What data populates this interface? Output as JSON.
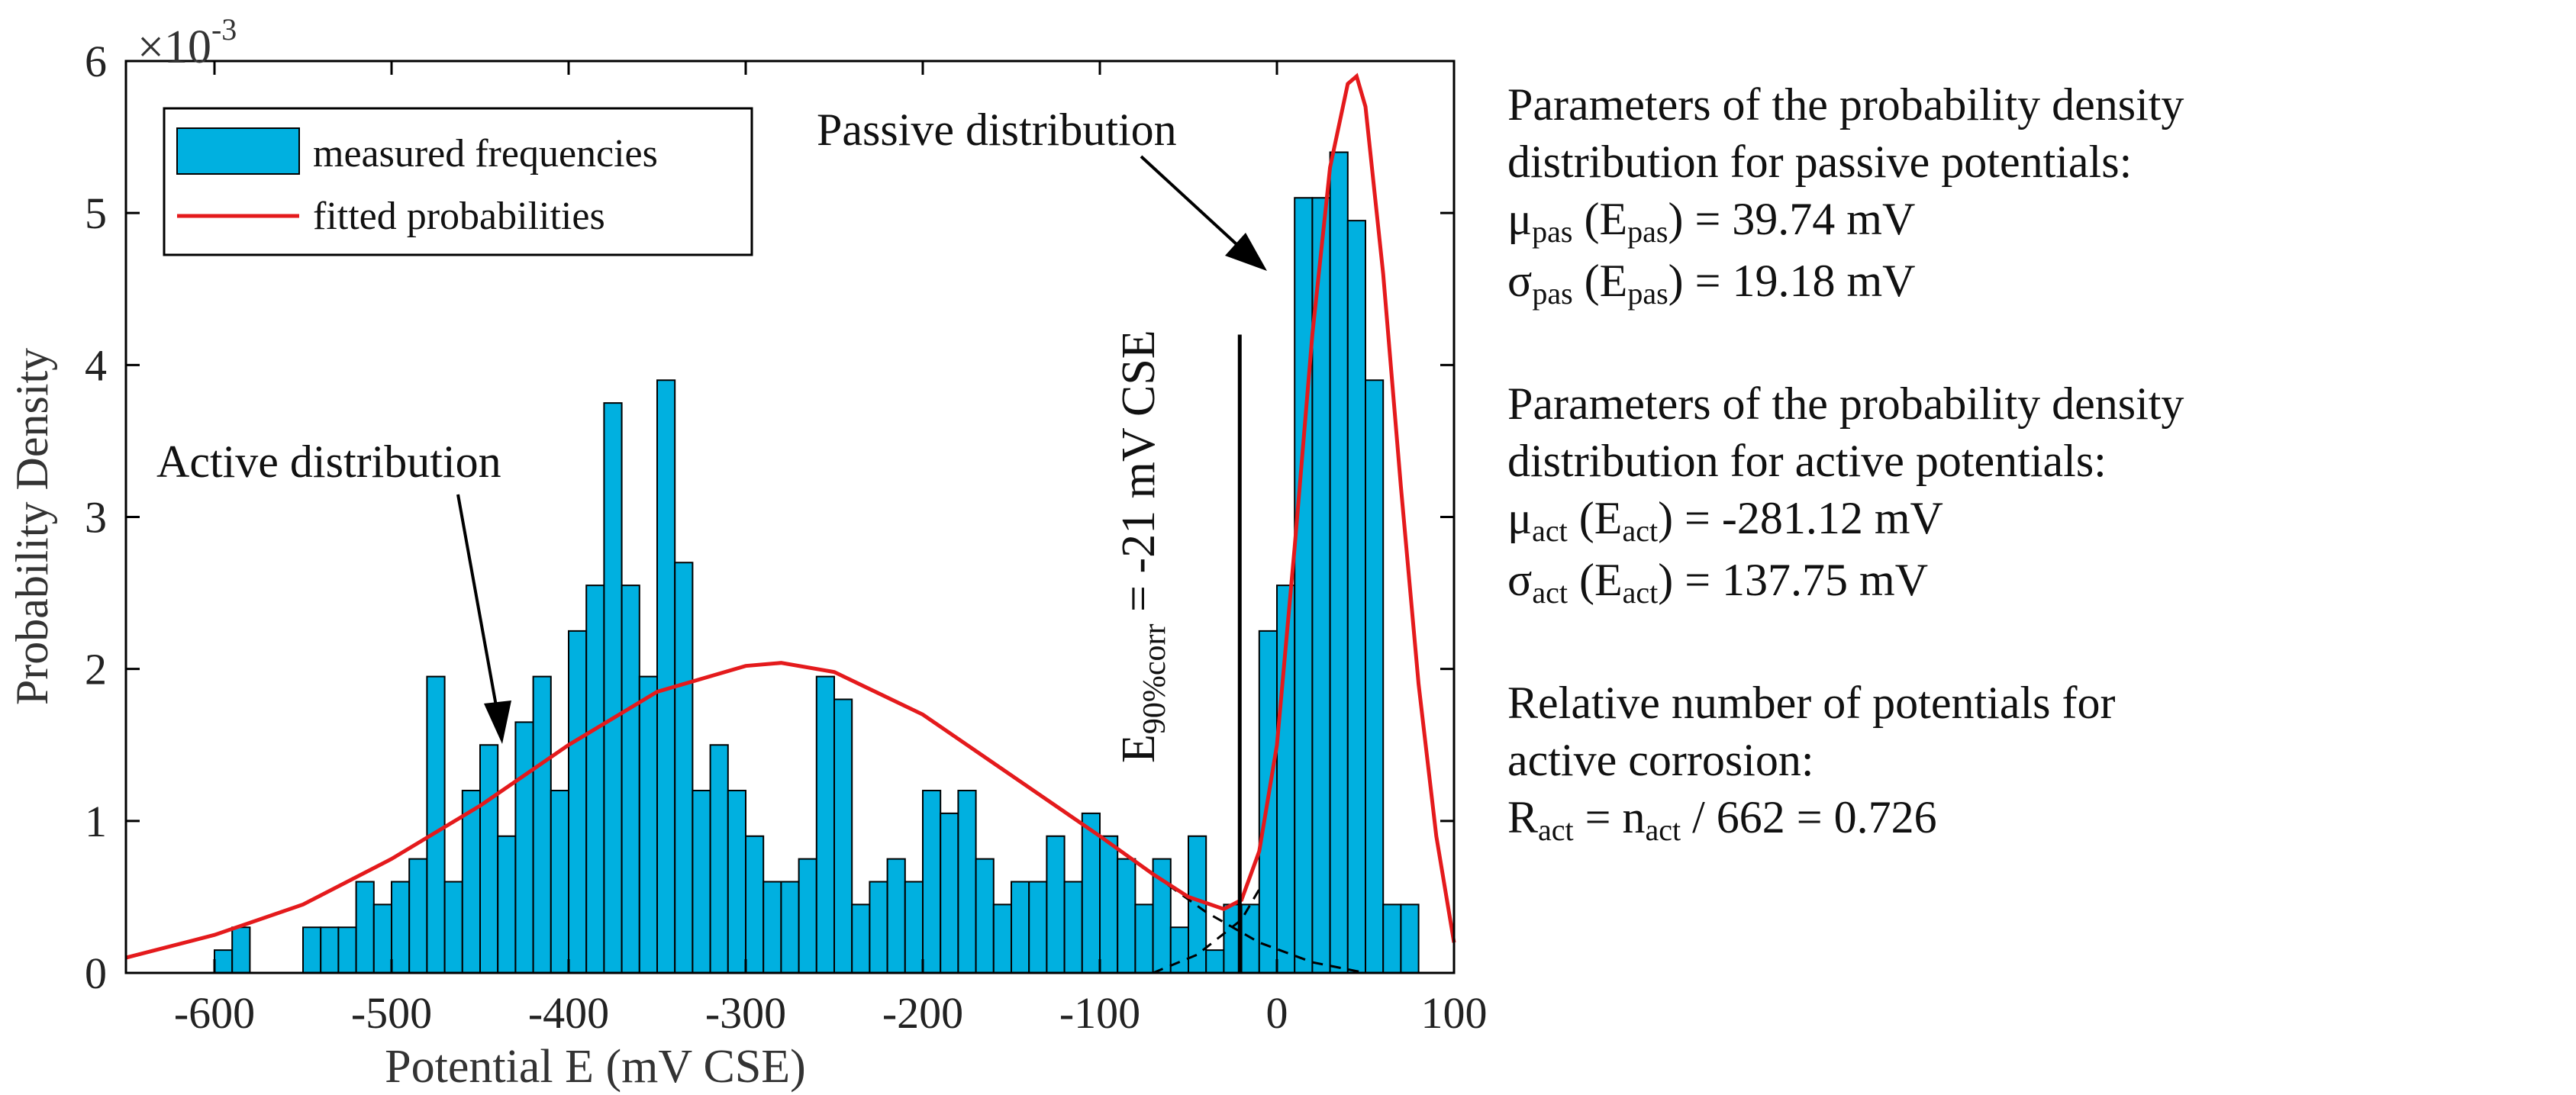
{
  "chart_data": {
    "type": "bar",
    "subtype": "histogram-with-fitted-density",
    "xlabel": "Potential E (mV CSE)",
    "ylabel": "Probability Density",
    "y_scale_label": "×10",
    "y_scale_exponent": "-3",
    "xlim": [
      -650,
      100
    ],
    "ylim": [
      0,
      6
    ],
    "x_ticks": [
      -600,
      -500,
      -400,
      -300,
      -200,
      -100,
      0,
      100
    ],
    "y_ticks": [
      0,
      1,
      2,
      3,
      4,
      5,
      6
    ],
    "bin_width": 10,
    "bins_start": [
      -600,
      -590,
      -550,
      -540,
      -530,
      -520,
      -510,
      -500,
      -490,
      -480,
      -470,
      -460,
      -450,
      -440,
      -430,
      -420,
      -410,
      -400,
      -390,
      -380,
      -370,
      -360,
      -350,
      -340,
      -330,
      -320,
      -310,
      -300,
      -290,
      -280,
      -270,
      -260,
      -250,
      -240,
      -230,
      -220,
      -210,
      -200,
      -190,
      -180,
      -170,
      -160,
      -150,
      -140,
      -130,
      -120,
      -110,
      -100,
      -90,
      -80,
      -70,
      -60,
      -50,
      -40,
      -30,
      -20,
      -10,
      0,
      10,
      20,
      30,
      40,
      50,
      60,
      70
    ],
    "bin_values": [
      0.15,
      0.3,
      0.3,
      0.3,
      0.3,
      0.6,
      0.45,
      0.6,
      0.75,
      1.95,
      0.6,
      1.2,
      1.5,
      0.9,
      1.65,
      1.95,
      1.2,
      2.25,
      2.55,
      3.75,
      2.55,
      1.95,
      3.9,
      2.7,
      1.2,
      1.5,
      1.2,
      0.9,
      0.6,
      0.6,
      0.75,
      1.95,
      1.8,
      0.45,
      0.6,
      0.75,
      0.6,
      1.2,
      1.05,
      1.2,
      0.75,
      0.45,
      0.6,
      0.6,
      0.9,
      0.6,
      1.05,
      0.9,
      0.75,
      0.45,
      0.75,
      0.3,
      0.9,
      0.15,
      0.45,
      0.45,
      2.25,
      2.55,
      5.1,
      5.1,
      5.4,
      4.95,
      3.9,
      0.45,
      0.45
    ],
    "fit_curve": [
      [
        -650,
        0.1
      ],
      [
        -600,
        0.25
      ],
      [
        -550,
        0.45
      ],
      [
        -500,
        0.75
      ],
      [
        -450,
        1.1
      ],
      [
        -400,
        1.5
      ],
      [
        -350,
        1.85
      ],
      [
        -300,
        2.02
      ],
      [
        -280,
        2.04
      ],
      [
        -250,
        1.98
      ],
      [
        -200,
        1.7
      ],
      [
        -150,
        1.3
      ],
      [
        -100,
        0.9
      ],
      [
        -70,
        0.65
      ],
      [
        -50,
        0.5
      ],
      [
        -30,
        0.42
      ],
      [
        -20,
        0.48
      ],
      [
        -10,
        0.8
      ],
      [
        0,
        1.5
      ],
      [
        10,
        2.8
      ],
      [
        20,
        4.2
      ],
      [
        30,
        5.3
      ],
      [
        40,
        5.85
      ],
      [
        45,
        5.9
      ],
      [
        50,
        5.7
      ],
      [
        60,
        4.6
      ],
      [
        70,
        3.2
      ],
      [
        80,
        1.9
      ],
      [
        90,
        0.9
      ],
      [
        100,
        0.2
      ]
    ],
    "series": [
      {
        "name": "measured frequencies",
        "color": "#00b0e0"
      },
      {
        "name": "fitted probabilities",
        "color": "#e41a1c"
      }
    ],
    "legend_position": "top-left",
    "annotations": {
      "passive": "Passive distribution",
      "active": "Active distribution",
      "threshold_main": "E",
      "threshold_sub": "90%corr",
      "threshold_rest": " = -21 mV CSE",
      "threshold_x": -21
    },
    "grid": false
  },
  "params": {
    "passive_heading_1": "Parameters of the probability density",
    "passive_heading_2": "distribution for passive potentials:",
    "passive_mu_sym": "μ",
    "passive_mu_sub": "pas",
    "passive_mu_mid": " (E",
    "passive_mu_sub2": "pas",
    "passive_mu_val": ") = 39.74 mV",
    "passive_sigma_sym": "σ",
    "passive_sigma_sub": "pas",
    "passive_sigma_mid": " (E",
    "passive_sigma_sub2": "pas",
    "passive_sigma_val": ") = 19.18 mV",
    "active_heading_1": "Parameters of the probability density",
    "active_heading_2": "distribution for active potentials:",
    "active_mu_sym": "μ",
    "active_mu_sub": "act",
    "active_mu_mid": " (E",
    "active_mu_sub2": "act",
    "active_mu_val": ") = -281.12 mV",
    "active_sigma_sym": "σ",
    "active_sigma_sub": "act",
    "active_sigma_mid": " (E",
    "active_sigma_sub2": "act",
    "active_sigma_val": ") = 137.75 mV",
    "rel_heading_1": "Relative number of potentials for",
    "rel_heading_2": "active corrosion:",
    "rel_sym": "R",
    "rel_sub": "act",
    "rel_mid": " = n",
    "rel_sub2": "act",
    "rel_val": " / 662 = 0.726"
  }
}
